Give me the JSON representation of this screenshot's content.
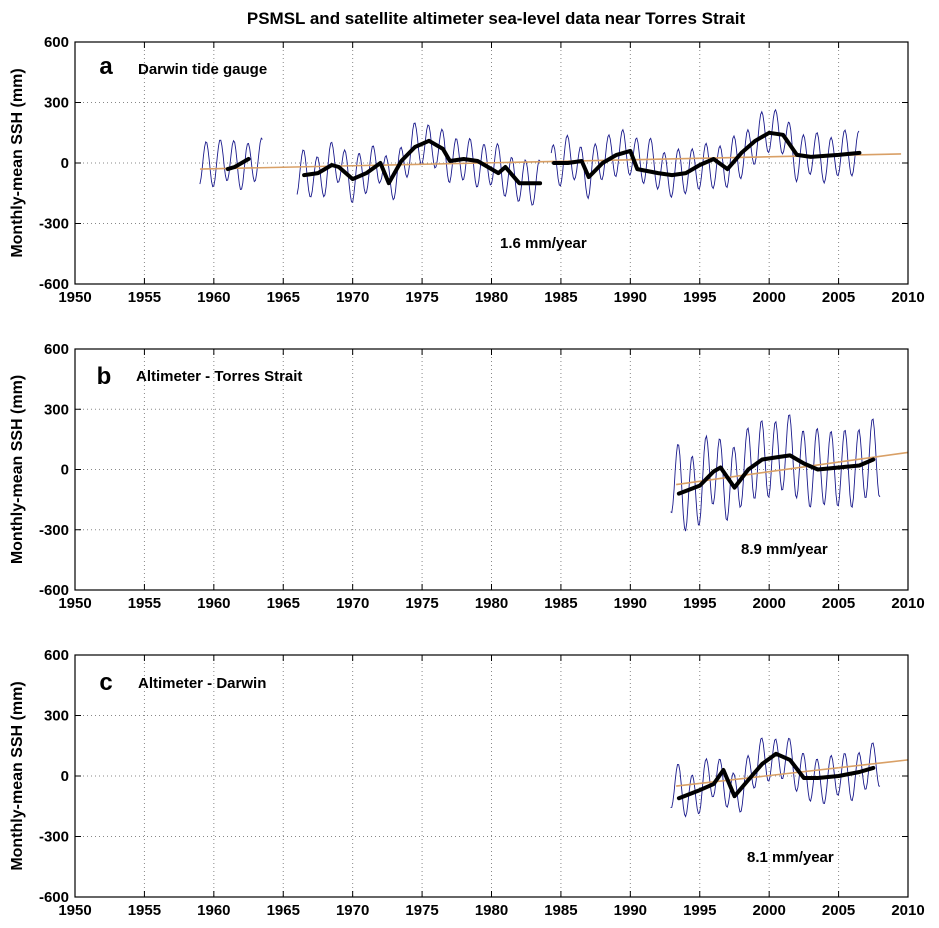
{
  "chart_data": {
    "title": "PSMSL and satellite altimeter sea-level data near Torres Strait",
    "type": "line",
    "xlim": [
      1950,
      2010
    ],
    "ylim": [
      -600,
      600
    ],
    "x_ticks": [
      1950,
      1955,
      1960,
      1965,
      1970,
      1975,
      1980,
      1985,
      1990,
      1995,
      2000,
      2005,
      2010
    ],
    "y_ticks": [
      600,
      300,
      0,
      -300,
      -600
    ],
    "ylabel": "Monthly-mean SSH (mm)",
    "grid": true,
    "colors": {
      "monthly": "#1a1a8c",
      "smoothed": "#000000",
      "trend": "#d9a066"
    },
    "panels": [
      {
        "id": "a",
        "letter": "a",
        "label": "Darwin tide gauge",
        "trend_label": "1.6 mm/year",
        "trend_rate": 1.6,
        "monthly": {
          "segments": [
            {
              "start": 1959.0,
              "end": 1963.5,
              "amp": 110,
              "base": [
                [
                  1959,
                  0
                ],
                [
                  1963.5,
                  0
                ]
              ]
            },
            {
              "start": 1966.0,
              "end": 1983.5,
              "amp": 110,
              "base": [
                [
                  1966.5,
                  -60
                ],
                [
                  1968,
                  -50
                ],
                [
                  1969,
                  0
                ],
                [
                  1970,
                  -80
                ],
                [
                  1971,
                  -40
                ],
                [
                  1972,
                  0
                ],
                [
                  1972.5,
                  -100
                ],
                [
                  1974,
                  40
                ],
                [
                  1975,
                  100
                ],
                [
                  1976,
                  90
                ],
                [
                  1977,
                  10
                ],
                [
                  1979,
                  10
                ],
                [
                  1981,
                  -50
                ],
                [
                  1982.5,
                  -100
                ],
                [
                  1983.5,
                  -100
                ]
              ]
            },
            {
              "start": 1984.3,
              "end": 2006.5,
              "amp": 110,
              "base": [
                [
                  1984.5,
                  0
                ],
                [
                  1986,
                  10
                ],
                [
                  1987,
                  -50
                ],
                [
                  1988,
                  20
                ],
                [
                  1990,
                  60
                ],
                [
                  1991,
                  0
                ],
                [
                  1993,
                  -50
                ],
                [
                  1994,
                  -50
                ],
                [
                  1996,
                  0
                ],
                [
                  1997,
                  -30
                ],
                [
                  1998.5,
                  80
                ],
                [
                  2000,
                  160
                ],
                [
                  2001,
                  150
                ],
                [
                  2002,
                  30
                ],
                [
                  2004,
                  30
                ],
                [
                  2006.5,
                  50
                ]
              ]
            }
          ]
        },
        "smoothed": [
          [
            [
              1961,
              -30
            ],
            [
              1961.5,
              -20
            ],
            [
              1962.5,
              20
            ]
          ],
          [
            [
              1966.5,
              -60
            ],
            [
              1967.5,
              -50
            ],
            [
              1968.5,
              -10
            ],
            [
              1969,
              -20
            ],
            [
              1970,
              -80
            ],
            [
              1971,
              -50
            ],
            [
              1972,
              0
            ],
            [
              1972.6,
              -100
            ],
            [
              1973.5,
              10
            ],
            [
              1974.5,
              80
            ],
            [
              1975.5,
              110
            ],
            [
              1976.5,
              70
            ],
            [
              1977,
              10
            ],
            [
              1978,
              20
            ],
            [
              1979,
              10
            ],
            [
              1980.5,
              -50
            ],
            [
              1981,
              -20
            ],
            [
              1982,
              -100
            ],
            [
              1983.5,
              -100
            ]
          ],
          [
            [
              1984.5,
              0
            ],
            [
              1985.5,
              0
            ],
            [
              1986.5,
              10
            ],
            [
              1987,
              -70
            ],
            [
              1988,
              0
            ],
            [
              1989,
              40
            ],
            [
              1990,
              60
            ],
            [
              1990.5,
              -30
            ],
            [
              1992,
              -50
            ],
            [
              1993,
              -60
            ],
            [
              1994,
              -50
            ],
            [
              1995,
              -10
            ],
            [
              1996,
              20
            ],
            [
              1997,
              -30
            ],
            [
              1998,
              50
            ],
            [
              1999,
              110
            ],
            [
              2000,
              150
            ],
            [
              2001,
              140
            ],
            [
              2002,
              40
            ],
            [
              2003,
              30
            ],
            [
              2005,
              40
            ],
            [
              2006.5,
              50
            ]
          ]
        ],
        "trend": [
          [
            1959,
            -30
          ],
          [
            2009.5,
            45
          ]
        ]
      },
      {
        "id": "b",
        "letter": "b",
        "label": "Altimeter - Torres Strait",
        "trend_label": "8.9 mm/year",
        "trend_rate": 8.9,
        "monthly": {
          "segments": [
            {
              "start": 1992.9,
              "end": 2008.0,
              "amp": 190,
              "base": [
                [
                  1993,
                  -30
                ],
                [
                  1994,
                  -120
                ],
                [
                  1995,
                  -80
                ],
                [
                  1996,
                  0
                ],
                [
                  1997,
                  -50
                ],
                [
                  1997.5,
                  -80
                ],
                [
                  1998,
                  0
                ],
                [
                  1999,
                  40
                ],
                [
                  2000,
                  60
                ],
                [
                  2001,
                  80
                ],
                [
                  2002,
                  40
                ],
                [
                  2003,
                  10
                ],
                [
                  2005,
                  0
                ],
                [
                  2007,
                  30
                ],
                [
                  2008,
                  60
                ]
              ]
            }
          ]
        },
        "smoothed": [
          [
            [
              1993.5,
              -120
            ],
            [
              1995,
              -80
            ],
            [
              1996,
              -10
            ],
            [
              1996.5,
              10
            ],
            [
              1997.5,
              -90
            ],
            [
              1998.5,
              0
            ],
            [
              1999.5,
              50
            ],
            [
              2000.5,
              60
            ],
            [
              2001.5,
              70
            ],
            [
              2002.5,
              30
            ],
            [
              2003.5,
              0
            ],
            [
              2005,
              10
            ],
            [
              2006.5,
              20
            ],
            [
              2007.5,
              50
            ]
          ]
        ],
        "trend": [
          [
            1993.3,
            -75
          ],
          [
            2010,
            85
          ]
        ]
      },
      {
        "id": "c",
        "letter": "c",
        "label": "Altimeter - Darwin",
        "trend_label": "8.1 mm/year",
        "trend_rate": 8.1,
        "monthly": {
          "segments": [
            {
              "start": 1992.9,
              "end": 2008.0,
              "amp": 110,
              "base": [
                [
                  1993,
                  -60
                ],
                [
                  1994,
                  -90
                ],
                [
                  1995,
                  -70
                ],
                [
                  1996,
                  0
                ],
                [
                  1997,
                  -50
                ],
                [
                  1997.5,
                  -100
                ],
                [
                  1998.5,
                  0
                ],
                [
                  2000,
                  100
                ],
                [
                  2001,
                  90
                ],
                [
                  2002,
                  30
                ],
                [
                  2003,
                  -20
                ],
                [
                  2005,
                  -10
                ],
                [
                  2007,
                  30
                ],
                [
                  2008,
                  60
                ]
              ]
            }
          ]
        },
        "smoothed": [
          [
            [
              1993.5,
              -110
            ],
            [
              1995,
              -70
            ],
            [
              1996,
              -40
            ],
            [
              1996.7,
              30
            ],
            [
              1997.5,
              -100
            ],
            [
              1998.5,
              -20
            ],
            [
              1999.5,
              60
            ],
            [
              2000.5,
              110
            ],
            [
              2001.5,
              80
            ],
            [
              2002.5,
              -10
            ],
            [
              2003.5,
              -10
            ],
            [
              2005,
              0
            ],
            [
              2006.5,
              20
            ],
            [
              2007.5,
              40
            ]
          ]
        ],
        "trend": [
          [
            1993.3,
            -50
          ],
          [
            2010,
            80
          ]
        ]
      }
    ]
  }
}
